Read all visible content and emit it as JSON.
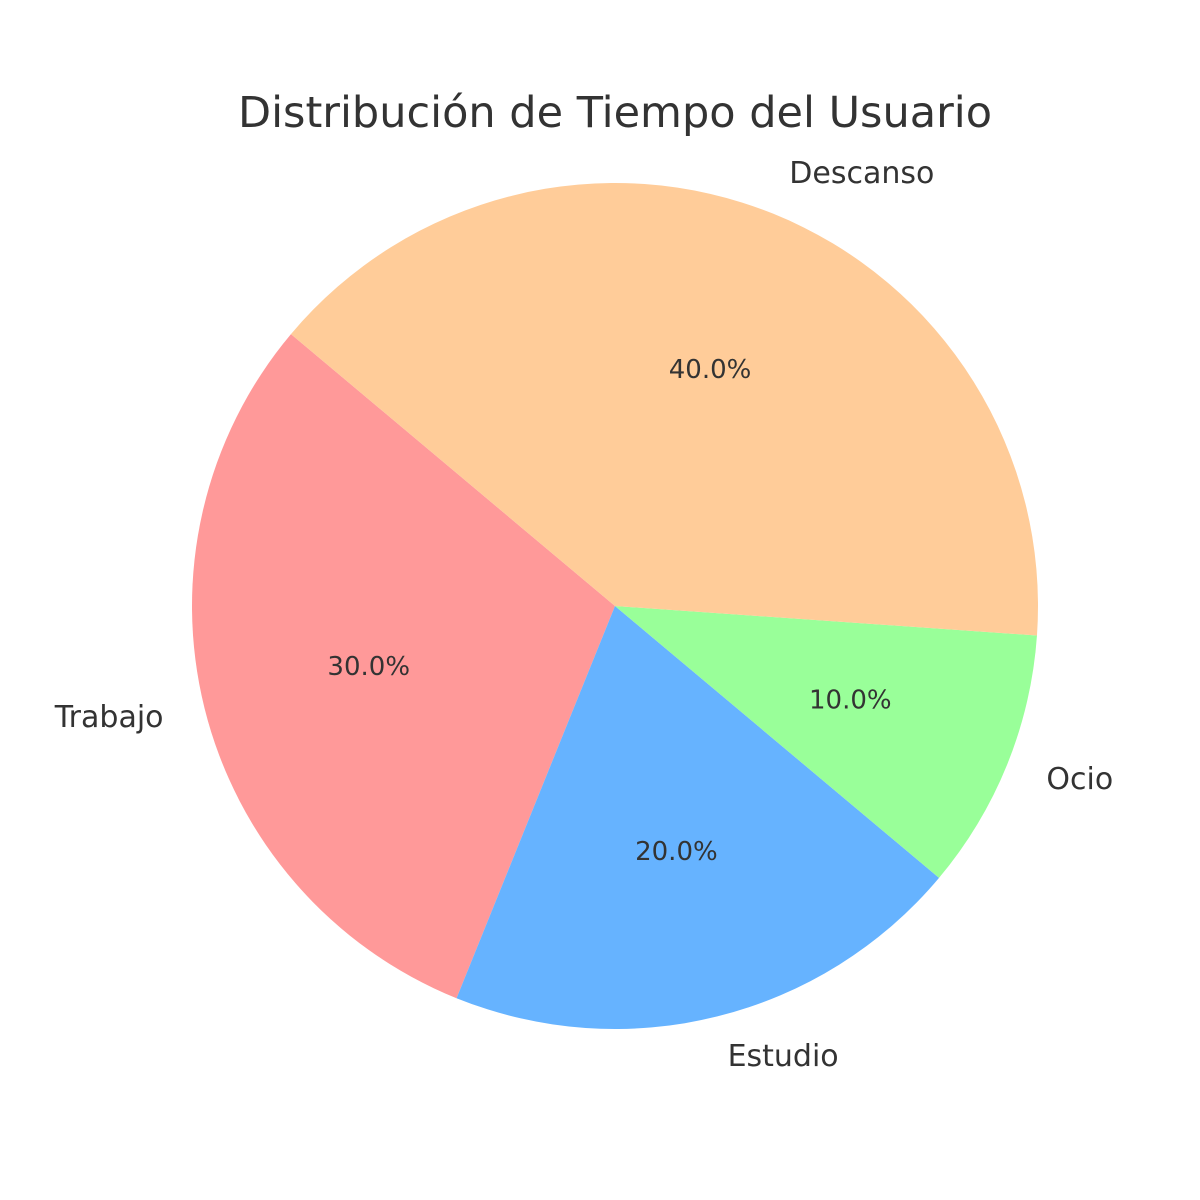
{
  "chart_data": {
    "type": "pie",
    "title": "Distribución de Tiempo del Usuario",
    "start_angle_deg": 140,
    "direction": "counterclockwise",
    "slices": [
      {
        "label": "Trabajo",
        "value": 30,
        "pct_text": "30.0%",
        "color": "#ff9999"
      },
      {
        "label": "Estudio",
        "value": 20,
        "pct_text": "20.0%",
        "color": "#66b3ff"
      },
      {
        "label": "Ocio",
        "value": 10,
        "pct_text": "10.0%",
        "color": "#99ff99"
      },
      {
        "label": "Descanso",
        "value": 40,
        "pct_text": "40.0%",
        "color": "#ffcc99"
      }
    ]
  }
}
